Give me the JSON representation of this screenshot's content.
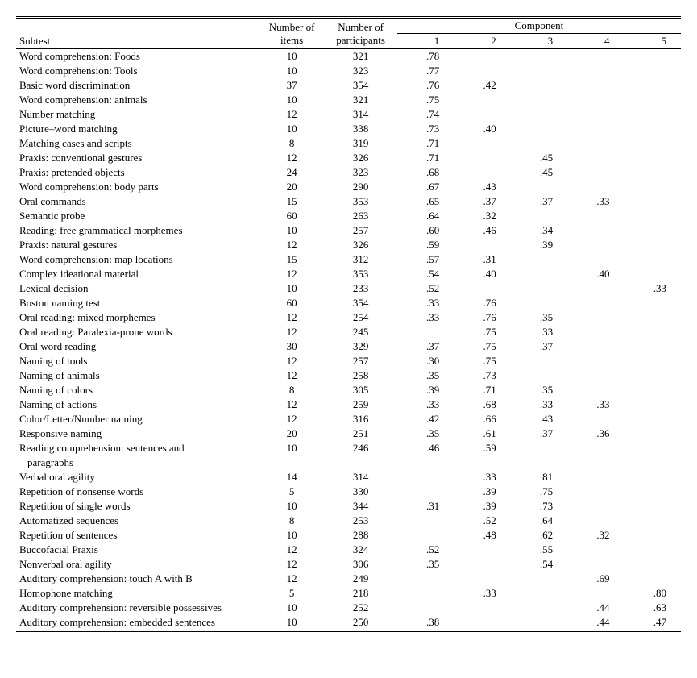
{
  "headers": {
    "subtest": "Subtest",
    "nitems": "Number of items",
    "nparts": "Number of participants",
    "component": "Component",
    "c1": "1",
    "c2": "2",
    "c3": "3",
    "c4": "4",
    "c5": "5"
  },
  "rows": [
    {
      "s": "Word comprehension: Foods",
      "ni": "10",
      "np": "321",
      "c": [
        ".78",
        "",
        "",
        "",
        ""
      ]
    },
    {
      "s": "Word comprehension: Tools",
      "ni": "10",
      "np": "323",
      "c": [
        ".77",
        "",
        "",
        "",
        ""
      ]
    },
    {
      "s": "Basic word discrimination",
      "ni": "37",
      "np": "354",
      "c": [
        ".76",
        ".42",
        "",
        "",
        ""
      ]
    },
    {
      "s": "Word comprehension: animals",
      "ni": "10",
      "np": "321",
      "c": [
        ".75",
        "",
        "",
        "",
        ""
      ]
    },
    {
      "s": "Number matching",
      "ni": "12",
      "np": "314",
      "c": [
        ".74",
        "",
        "",
        "",
        ""
      ]
    },
    {
      "s": "Picture–word matching",
      "ni": "10",
      "np": "338",
      "c": [
        ".73",
        ".40",
        "",
        "",
        ""
      ]
    },
    {
      "s": "Matching cases and scripts",
      "ni": "8",
      "np": "319",
      "c": [
        ".71",
        "",
        "",
        "",
        ""
      ]
    },
    {
      "s": "Praxis: conventional gestures",
      "ni": "12",
      "np": "326",
      "c": [
        ".71",
        "",
        ".45",
        "",
        ""
      ]
    },
    {
      "s": "Praxis: pretended objects",
      "ni": "24",
      "np": "323",
      "c": [
        ".68",
        "",
        ".45",
        "",
        ""
      ]
    },
    {
      "s": "Word comprehension: body parts",
      "ni": "20",
      "np": "290",
      "c": [
        ".67",
        ".43",
        "",
        "",
        ""
      ]
    },
    {
      "s": "Oral commands",
      "ni": "15",
      "np": "353",
      "c": [
        ".65",
        ".37",
        ".37",
        ".33",
        ""
      ]
    },
    {
      "s": "Semantic probe",
      "ni": "60",
      "np": "263",
      "c": [
        ".64",
        ".32",
        "",
        "",
        ""
      ]
    },
    {
      "s": "Reading: free grammatical morphemes",
      "ni": "10",
      "np": "257",
      "c": [
        ".60",
        ".46",
        ".34",
        "",
        ""
      ]
    },
    {
      "s": "Praxis: natural gestures",
      "ni": "12",
      "np": "326",
      "c": [
        ".59",
        "",
        ".39",
        "",
        ""
      ]
    },
    {
      "s": "Word comprehension: map locations",
      "ni": "15",
      "np": "312",
      "c": [
        ".57",
        ".31",
        "",
        "",
        ""
      ]
    },
    {
      "s": "Complex ideational material",
      "ni": "12",
      "np": "353",
      "c": [
        ".54",
        ".40",
        "",
        ".40",
        ""
      ]
    },
    {
      "s": "Lexical decision",
      "ni": "10",
      "np": "233",
      "c": [
        ".52",
        "",
        "",
        "",
        ".33"
      ]
    },
    {
      "s": "Boston naming test",
      "ni": "60",
      "np": "354",
      "c": [
        ".33",
        ".76",
        "",
        "",
        ""
      ]
    },
    {
      "s": "Oral reading: mixed morphemes",
      "ni": "12",
      "np": "254",
      "c": [
        ".33",
        ".76",
        ".35",
        "",
        ""
      ]
    },
    {
      "s": "Oral reading: Paralexia-prone words",
      "ni": "12",
      "np": "245",
      "c": [
        "",
        ".75",
        ".33",
        "",
        ""
      ]
    },
    {
      "s": "Oral word reading",
      "ni": "30",
      "np": "329",
      "c": [
        ".37",
        ".75",
        ".37",
        "",
        ""
      ]
    },
    {
      "s": "Naming of tools",
      "ni": "12",
      "np": "257",
      "c": [
        ".30",
        ".75",
        "",
        "",
        ""
      ]
    },
    {
      "s": "Naming of animals",
      "ni": "12",
      "np": "258",
      "c": [
        ".35",
        ".73",
        "",
        "",
        ""
      ]
    },
    {
      "s": "Naming of colors",
      "ni": "8",
      "np": "305",
      "c": [
        ".39",
        ".71",
        ".35",
        "",
        ""
      ]
    },
    {
      "s": "Naming of actions",
      "ni": "12",
      "np": "259",
      "c": [
        ".33",
        ".68",
        ".33",
        ".33",
        ""
      ]
    },
    {
      "s": "Color/Letter/Number naming",
      "ni": "12",
      "np": "316",
      "c": [
        ".42",
        ".66",
        ".43",
        "",
        ""
      ]
    },
    {
      "s": "Responsive naming",
      "ni": "20",
      "np": "251",
      "c": [
        ".35",
        ".61",
        ".37",
        ".36",
        ""
      ]
    },
    {
      "s": "Reading comprehension: sentences and paragraphs",
      "ni": "10",
      "np": "246",
      "c": [
        ".46",
        ".59",
        "",
        "",
        ""
      ],
      "wrap": true
    },
    {
      "s": "Verbal oral agility",
      "ni": "14",
      "np": "314",
      "c": [
        "",
        ".33",
        ".81",
        "",
        ""
      ]
    },
    {
      "s": "Repetition of nonsense words",
      "ni": "5",
      "np": "330",
      "c": [
        "",
        ".39",
        ".75",
        "",
        ""
      ]
    },
    {
      "s": "Repetition of single words",
      "ni": "10",
      "np": "344",
      "c": [
        ".31",
        ".39",
        ".73",
        "",
        ""
      ]
    },
    {
      "s": "Automatized sequences",
      "ni": "8",
      "np": "253",
      "c": [
        "",
        ".52",
        ".64",
        "",
        ""
      ]
    },
    {
      "s": "Repetition of sentences",
      "ni": "10",
      "np": "288",
      "c": [
        "",
        ".48",
        ".62",
        ".32",
        ""
      ]
    },
    {
      "s": "Buccofacial Praxis",
      "ni": "12",
      "np": "324",
      "c": [
        ".52",
        "",
        ".55",
        "",
        ""
      ]
    },
    {
      "s": "Nonverbal oral agility",
      "ni": "12",
      "np": "306",
      "c": [
        ".35",
        "",
        ".54",
        "",
        ""
      ]
    },
    {
      "s": "Auditory comprehension: touch A with B",
      "ni": "12",
      "np": "249",
      "c": [
        "",
        "",
        "",
        ".69",
        ""
      ]
    },
    {
      "s": "Homophone matching",
      "ni": "5",
      "np": "218",
      "c": [
        "",
        ".33",
        "",
        "",
        ".80"
      ]
    },
    {
      "s": "Auditory comprehension: reversible possessives",
      "ni": "10",
      "np": "252",
      "c": [
        "",
        "",
        "",
        ".44",
        ".63"
      ]
    },
    {
      "s": "Auditory comprehension: embedded sentences",
      "ni": "10",
      "np": "250",
      "c": [
        ".38",
        "",
        "",
        ".44",
        ".47"
      ]
    }
  ],
  "wrap_line2": "paragraphs",
  "wrap_line1": "Reading comprehension: sentences and"
}
